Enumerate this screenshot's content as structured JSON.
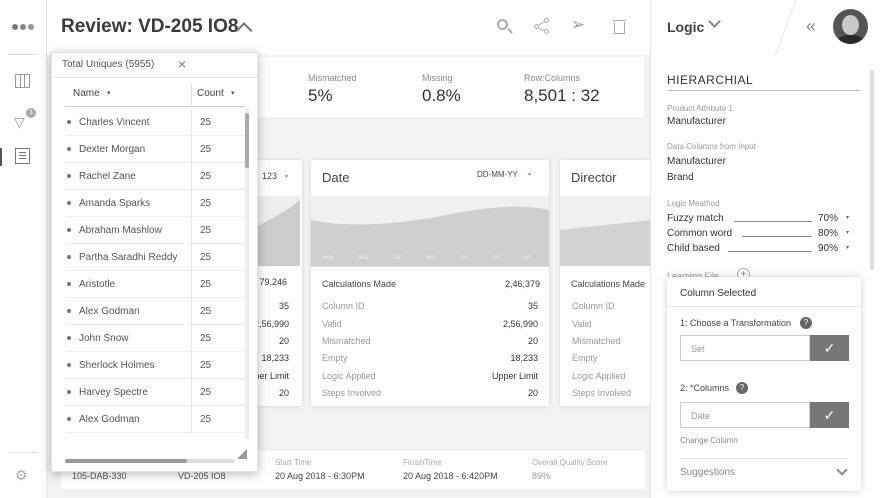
{
  "header": {
    "title": "Review: VD-205 IO8",
    "right_title": "Logic"
  },
  "rail": {
    "badge": "1"
  },
  "stats": [
    {
      "label": "Mismatched",
      "value": "5%"
    },
    {
      "label": "Missing",
      "value": "0.8%"
    },
    {
      "label": "Row:Columns",
      "value": "8,501 : 32"
    }
  ],
  "cards": {
    "left": {
      "format": "123",
      "total": "79,246",
      "values": [
        "35",
        "2,56,990",
        "20",
        "18,233",
        "Upper Limit",
        "20"
      ]
    },
    "date": {
      "title": "Date",
      "format": "DD-MM-YY",
      "calc_label": "Calculations Made",
      "calc_value": "2,46,379",
      "rows": [
        {
          "label": "Column ID",
          "value": "35"
        },
        {
          "label": "Valid",
          "value": "2,56,990"
        },
        {
          "label": "Mismatched",
          "value": "20"
        },
        {
          "label": "Empty",
          "value": "18,233"
        },
        {
          "label": "Logic Applied",
          "value": "Upper Limit"
        },
        {
          "label": "Steps Involved",
          "value": "20"
        }
      ]
    },
    "director": {
      "title": "Director",
      "calc_label": "Calculations Made",
      "rows": [
        "Column ID",
        "Valid",
        "Mismatched",
        "Empty",
        "Logic Applied",
        "Steps Involved"
      ]
    }
  },
  "popup": {
    "title": "Total Uniques (5955)",
    "col_name": "Name",
    "col_count": "Count",
    "items": [
      {
        "name": "Charles Vincent",
        "count": "25"
      },
      {
        "name": "Dexter Morgan",
        "count": "25"
      },
      {
        "name": "Rachel Zane",
        "count": "25"
      },
      {
        "name": "Amanda Sparks",
        "count": "25"
      },
      {
        "name": "Abraham Mashlow",
        "count": "25"
      },
      {
        "name": "Partha Saradhi Reddy",
        "count": "25"
      },
      {
        "name": "Aristotle",
        "count": "25"
      },
      {
        "name": "Alex Godman",
        "count": "25"
      },
      {
        "name": "John Snow",
        "count": "25"
      },
      {
        "name": "Sherlock Holmes",
        "count": "25"
      },
      {
        "name": "Harvey Spectre",
        "count": "25"
      },
      {
        "name": "Alex Godman",
        "count": "25"
      }
    ]
  },
  "footer": {
    "id1": "105-DAB-330",
    "id2": "VD-205 IO8",
    "start_label": "Start Time",
    "start_value": "20 Aug 2018 - 6:30PM",
    "finish_label": "FinishTime",
    "finish_value": "20 Aug 2018 - 6:420PM",
    "quality_label": "Overall Quality Score",
    "quality_value": "89%"
  },
  "logic": {
    "section": "HIERARCHIAL",
    "attr_label": "Product Attribute 1",
    "attr_value": "Manufacturer",
    "input_label": "Data Columns from Input",
    "input_values": [
      "Manufacturer",
      "Brand"
    ],
    "method_label": "Logic Meathod",
    "methods": [
      {
        "name": "Fuzzy match",
        "pct": "70%"
      },
      {
        "name": "Common word",
        "pct": "80%"
      },
      {
        "name": "Child based",
        "pct": "90%"
      }
    ],
    "learning": "Learning File"
  },
  "column_selected": {
    "title": "Column Selected",
    "step1": "1: Choose a Transformation",
    "step1_placeholder": "Set",
    "step2": "2: *Columns",
    "step2_placeholder": "Date",
    "change": "Change Column",
    "suggestions": "Suggestions"
  },
  "icons": [
    "apps-dots-icon",
    "columns-icon",
    "filter-icon",
    "notebook-icon",
    "settings-icon",
    "search-icon",
    "share-icon",
    "send-icon",
    "trash-icon",
    "collapse-icon",
    "avatar"
  ]
}
